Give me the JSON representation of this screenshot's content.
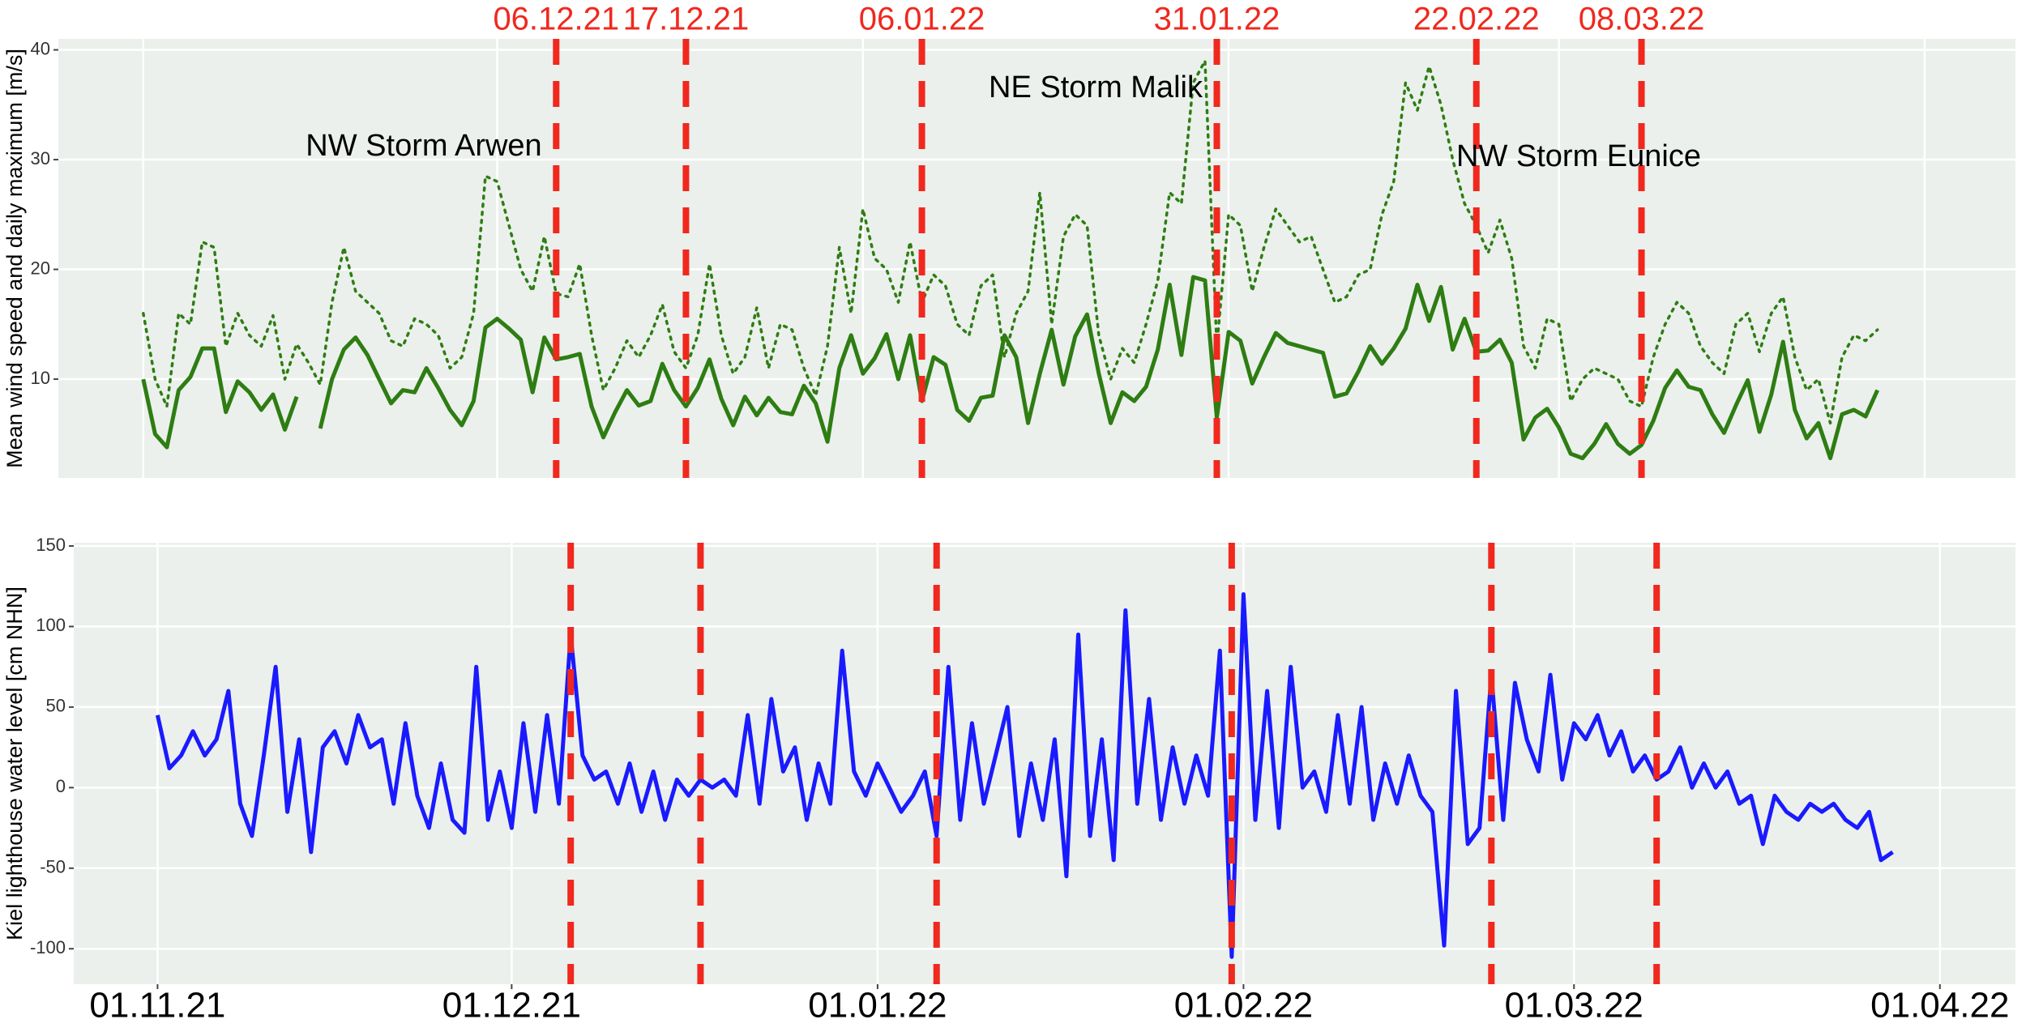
{
  "chart_data": [
    {
      "type": "line",
      "ylabel": "Mean wind speed and daily maximum [m/s]",
      "xlim": [
        -7.2,
        158.7
      ],
      "ylim": [
        1,
        41
      ],
      "yticks": [
        10,
        20,
        30,
        40
      ],
      "grid": true,
      "x": [
        0,
        1,
        2,
        3,
        4,
        5,
        6,
        7,
        8,
        9,
        10,
        11,
        12,
        13,
        14,
        15,
        16,
        17,
        18,
        19,
        20,
        21,
        22,
        23,
        24,
        25,
        26,
        27,
        28,
        29,
        30,
        31,
        32,
        33,
        34,
        35,
        36,
        37,
        38,
        39,
        40,
        41,
        42,
        43,
        44,
        45,
        46,
        47,
        48,
        49,
        50,
        51,
        52,
        53,
        54,
        55,
        56,
        57,
        58,
        59,
        60,
        61,
        62,
        63,
        64,
        65,
        66,
        67,
        68,
        69,
        70,
        71,
        72,
        73,
        74,
        75,
        76,
        77,
        78,
        79,
        80,
        81,
        82,
        83,
        84,
        85,
        86,
        87,
        88,
        89,
        90,
        91,
        92,
        93,
        94,
        95,
        96,
        97,
        98,
        99,
        100,
        101,
        102,
        103,
        104,
        105,
        106,
        107,
        108,
        109,
        110,
        111,
        112,
        113,
        114,
        115,
        116,
        117,
        118,
        119,
        120,
        121,
        122,
        123,
        124,
        125,
        126,
        127,
        128,
        129,
        130,
        131,
        132,
        133,
        134,
        135,
        136,
        137,
        138,
        139,
        140,
        141,
        142,
        143,
        144,
        145,
        146,
        147
      ],
      "series": [
        {
          "color": "#2e7d13",
          "style": "dotted",
          "values": [
            16,
            10,
            7.5,
            16,
            15,
            22.5,
            22,
            13,
            16,
            14,
            13,
            15.8,
            10,
            13.2,
            11.5,
            9.5,
            17,
            22,
            18,
            17,
            16,
            13.5,
            13,
            15.5,
            15,
            14,
            11,
            12,
            16,
            28.5,
            28,
            24,
            20,
            18,
            23,
            17.8,
            17.5,
            20.5,
            14,
            9,
            11,
            13.5,
            12,
            14,
            16.8,
            12.5,
            11,
            14,
            20.5,
            14,
            10.5,
            12,
            16.5,
            11,
            15,
            14.5,
            11,
            8.5,
            13,
            22,
            16,
            25.5,
            21,
            20,
            17,
            22.5,
            17,
            19.5,
            18.5,
            15,
            14,
            18.5,
            19.5,
            12,
            16,
            18,
            27,
            15,
            23,
            25,
            24,
            14,
            10,
            12.8,
            11.5,
            15,
            19,
            27,
            26,
            37,
            39,
            13,
            25,
            24,
            18,
            22,
            25.5,
            24,
            22.5,
            23,
            20,
            17,
            17.5,
            19.5,
            20,
            25,
            28,
            37,
            34.5,
            38.5,
            35,
            30,
            26,
            24,
            21.5,
            24.5,
            21,
            13,
            11,
            15.5,
            15,
            8,
            10,
            11,
            10.5,
            10,
            8,
            7.5,
            12,
            15,
            17,
            16,
            13,
            11.5,
            10.5,
            15,
            16,
            12.5,
            16,
            17.5,
            12,
            9,
            10,
            6,
            12,
            14,
            13.5,
            14.5
          ]
        },
        {
          "color": "#2e7d13",
          "style": "solid",
          "values": [
            10,
            5,
            3.8,
            9,
            10.2,
            12.8,
            12.8,
            7,
            9.8,
            8.8,
            7.2,
            8.6,
            5.4,
            8.4,
            null,
            5.5,
            10,
            12.7,
            13.8,
            12.2,
            10,
            7.8,
            9,
            8.8,
            11,
            9.2,
            7.2,
            5.8,
            8,
            14.7,
            15.5,
            14.6,
            13.6,
            8.8,
            13.8,
            11.8,
            12,
            12.3,
            7.5,
            4.7,
            7,
            9,
            7.6,
            8,
            11.4,
            9,
            7.5,
            9.2,
            11.8,
            8.2,
            5.8,
            8.4,
            6.7,
            8.3,
            7,
            6.8,
            9.4,
            7.8,
            4.3,
            11,
            14,
            10.5,
            11.9,
            14.1,
            10,
            14,
            8,
            12,
            11.3,
            7.2,
            6.2,
            8.3,
            8.5,
            14,
            12,
            6,
            10.5,
            14.5,
            9.5,
            13.9,
            15.9,
            10.5,
            6,
            8.8,
            8,
            9.3,
            12.7,
            18.6,
            12.2,
            19.3,
            19,
            6.5,
            14.3,
            13.5,
            9.6,
            12,
            14.2,
            13.3,
            13,
            12.7,
            12.4,
            8.4,
            8.7,
            10.7,
            13,
            11.4,
            12.8,
            14.6,
            18.6,
            15.3,
            18.4,
            12.7,
            15.5,
            12.5,
            12.6,
            13.6,
            11.5,
            4.5,
            6.5,
            7.3,
            5.6,
            3.2,
            2.8,
            4.1,
            5.9,
            4.1,
            3.2,
            4,
            6.2,
            9.2,
            10.8,
            9.3,
            9,
            6.8,
            5.1,
            7.6,
            9.9,
            5.2,
            8.6,
            13.4,
            7.2,
            4.6,
            6,
            2.8,
            6.8,
            7.2,
            6.6,
            9
          ]
        }
      ],
      "events": [
        {
          "x": 35,
          "label": "06.12.21"
        },
        {
          "x": 46,
          "label": "17.12.21"
        },
        {
          "x": 66,
          "label": "06.01.22"
        },
        {
          "x": 91,
          "label": "31.01.22"
        },
        {
          "x": 113,
          "label": "22.02.22"
        },
        {
          "x": 127,
          "label": "08.03.22"
        }
      ],
      "event_color": "#f0281e",
      "annotations": [
        "NW Storm Arwen",
        "NE Storm Malik",
        "NW Storm Eunice"
      ]
    },
    {
      "type": "line",
      "ylabel": "Kiel lighthouse water level [cm NHN]",
      "xlim": [
        -7.1,
        157.4
      ],
      "ylim": [
        -122,
        152
      ],
      "yticks": [
        -100,
        -50,
        0,
        50,
        100,
        150
      ],
      "grid": true,
      "xticks": [
        {
          "value": 0,
          "label": "01.11.21"
        },
        {
          "value": 30,
          "label": "01.12.21"
        },
        {
          "value": 61,
          "label": "01.01.22"
        },
        {
          "value": 92,
          "label": "01.02.22"
        },
        {
          "value": 120,
          "label": "01.03.22"
        },
        {
          "value": 151,
          "label": "01.04.22"
        }
      ],
      "x": [
        0,
        1,
        2,
        3,
        4,
        5,
        6,
        7,
        8,
        9,
        10,
        11,
        12,
        13,
        14,
        15,
        16,
        17,
        18,
        19,
        20,
        21,
        22,
        23,
        24,
        25,
        26,
        27,
        28,
        29,
        30,
        31,
        32,
        33,
        34,
        35,
        36,
        37,
        38,
        39,
        40,
        41,
        42,
        43,
        44,
        45,
        46,
        47,
        48,
        49,
        50,
        51,
        52,
        53,
        54,
        55,
        56,
        57,
        58,
        59,
        60,
        61,
        62,
        63,
        64,
        65,
        66,
        67,
        68,
        69,
        70,
        71,
        72,
        73,
        74,
        75,
        76,
        77,
        78,
        79,
        80,
        81,
        82,
        83,
        84,
        85,
        86,
        87,
        88,
        89,
        90,
        91,
        92,
        93,
        94,
        95,
        96,
        97,
        98,
        99,
        100,
        101,
        102,
        103,
        104,
        105,
        106,
        107,
        108,
        109,
        110,
        111,
        112,
        113,
        114,
        115,
        116,
        117,
        118,
        119,
        120,
        121,
        122,
        123,
        124,
        125,
        126,
        127,
        128,
        129,
        130,
        131,
        132,
        133,
        134,
        135,
        136,
        137,
        138,
        139,
        140,
        141,
        142,
        143,
        144,
        145,
        146,
        147
      ],
      "series": [
        {
          "color": "#1a1aff",
          "style": "solid",
          "values": [
            45,
            12,
            20,
            35,
            20,
            30,
            60,
            -10,
            -30,
            20,
            75,
            -15,
            30,
            -40,
            25,
            35,
            15,
            45,
            25,
            30,
            -10,
            40,
            -5,
            -25,
            15,
            -20,
            -28,
            75,
            -20,
            10,
            -25,
            40,
            -15,
            45,
            -10,
            95,
            20,
            5,
            10,
            -10,
            15,
            -15,
            10,
            -20,
            5,
            -5,
            5,
            0,
            5,
            -5,
            45,
            -10,
            55,
            10,
            25,
            -20,
            15,
            -10,
            85,
            10,
            -5,
            15,
            0,
            -15,
            -5,
            10,
            -30,
            75,
            -20,
            40,
            -10,
            20,
            50,
            -30,
            15,
            -20,
            30,
            -55,
            95,
            -30,
            30,
            -45,
            110,
            -10,
            55,
            -20,
            25,
            -10,
            20,
            -5,
            85,
            -105,
            120,
            -20,
            60,
            -25,
            75,
            0,
            10,
            -15,
            45,
            -10,
            50,
            -20,
            15,
            -10,
            20,
            -5,
            -15,
            -98,
            60,
            -35,
            -25,
            70,
            -20,
            65,
            30,
            10,
            70,
            5,
            40,
            30,
            45,
            20,
            35,
            10,
            20,
            5,
            10,
            25,
            0,
            15,
            0,
            10,
            -10,
            -5,
            -35,
            -5,
            -15,
            -20,
            -10,
            -15,
            -10,
            -20,
            -25,
            -15,
            -45,
            -40
          ]
        }
      ]
    }
  ]
}
